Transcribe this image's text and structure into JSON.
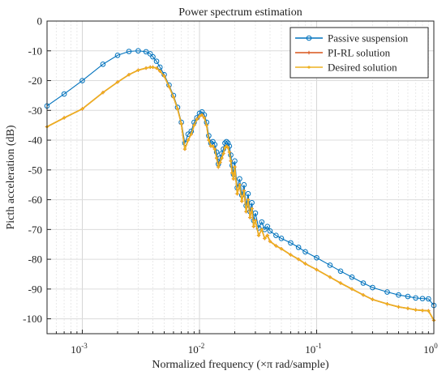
{
  "chart_data": {
    "type": "line",
    "title": "Power spectrum estimation",
    "xlabel": "Normalized frequency  (×π rad/sample)",
    "ylabel": "Picth acceleration (dB)",
    "x_scale": "log",
    "xlim": [
      0.0005,
      1
    ],
    "ylim": [
      -105,
      0
    ],
    "grid": true,
    "legend_position": "top-right",
    "x_ticks": [
      {
        "value": 0.001,
        "base": "10",
        "exp": "-3"
      },
      {
        "value": 0.01,
        "base": "10",
        "exp": "-2"
      },
      {
        "value": 0.1,
        "base": "10",
        "exp": "-1"
      },
      {
        "value": 1,
        "base": "10",
        "exp": "0"
      }
    ],
    "y_ticks": [
      {
        "value": 0,
        "label": "0"
      },
      {
        "value": -10,
        "label": "-10"
      },
      {
        "value": -20,
        "label": "-20"
      },
      {
        "value": -30,
        "label": "-30"
      },
      {
        "value": -40,
        "label": "-40"
      },
      {
        "value": -50,
        "label": "-50"
      },
      {
        "value": -60,
        "label": "-60"
      },
      {
        "value": -70,
        "label": "-70"
      },
      {
        "value": -80,
        "label": "-80"
      },
      {
        "value": -90,
        "label": "-90"
      },
      {
        "value": -100,
        "label": "-100"
      }
    ],
    "series": [
      {
        "name": "Passive suspension",
        "color": "#0072BD",
        "marker": "circle",
        "x": [
          0.0005,
          0.0007,
          0.001,
          0.0015,
          0.002,
          0.0025,
          0.003,
          0.0035,
          0.0038,
          0.004,
          0.0043,
          0.0046,
          0.005,
          0.0055,
          0.006,
          0.0065,
          0.007,
          0.0075,
          0.008,
          0.0085,
          0.009,
          0.0095,
          0.01,
          0.0105,
          0.011,
          0.0115,
          0.012,
          0.0125,
          0.013,
          0.0135,
          0.014,
          0.0145,
          0.015,
          0.0155,
          0.016,
          0.0165,
          0.017,
          0.0175,
          0.018,
          0.0185,
          0.019,
          0.0195,
          0.02,
          0.021,
          0.022,
          0.023,
          0.024,
          0.025,
          0.026,
          0.027,
          0.028,
          0.029,
          0.03,
          0.032,
          0.034,
          0.036,
          0.038,
          0.04,
          0.045,
          0.05,
          0.06,
          0.07,
          0.08,
          0.1,
          0.13,
          0.16,
          0.2,
          0.25,
          0.3,
          0.4,
          0.5,
          0.6,
          0.7,
          0.8,
          0.9,
          1.0
        ],
        "y": [
          -28.5,
          -24.5,
          -20,
          -14.5,
          -11.5,
          -10.2,
          -10,
          -10.3,
          -11,
          -12,
          -13.5,
          -15.5,
          -18,
          -21.5,
          -25,
          -29,
          -34,
          -41,
          -38,
          -37,
          -34,
          -32.5,
          -31,
          -30.5,
          -31.5,
          -34,
          -38.5,
          -41,
          -40.5,
          -41.5,
          -44,
          -48,
          -46,
          -44.5,
          -43,
          -41,
          -40.5,
          -41,
          -42,
          -45,
          -48.5,
          -51.5,
          -47,
          -56,
          -53,
          -58.5,
          -55,
          -62,
          -58,
          -64,
          -61,
          -67,
          -64.5,
          -69.5,
          -67.5,
          -70,
          -69,
          -70.5,
          -72,
          -73,
          -74.5,
          -76,
          -77.5,
          -79.5,
          -82,
          -84,
          -86,
          -88,
          -89.5,
          -91,
          -92,
          -92.5,
          -93,
          -93.2,
          -93.3,
          -95.5
        ]
      },
      {
        "name": "PI-RL solution",
        "color": "#D95319",
        "marker": "plus",
        "x": [
          0.0005,
          0.0007,
          0.001,
          0.0015,
          0.002,
          0.0025,
          0.003,
          0.0035,
          0.0038,
          0.004,
          0.0043,
          0.0046,
          0.005,
          0.0055,
          0.006,
          0.0065,
          0.007,
          0.0075,
          0.008,
          0.0085,
          0.009,
          0.0095,
          0.01,
          0.0105,
          0.011,
          0.0115,
          0.012,
          0.0125,
          0.013,
          0.0135,
          0.014,
          0.0145,
          0.015,
          0.0155,
          0.016,
          0.0165,
          0.017,
          0.0175,
          0.018,
          0.0185,
          0.019,
          0.0195,
          0.02,
          0.021,
          0.022,
          0.023,
          0.024,
          0.025,
          0.026,
          0.027,
          0.028,
          0.029,
          0.03,
          0.032,
          0.034,
          0.036,
          0.038,
          0.04,
          0.045,
          0.05,
          0.06,
          0.07,
          0.08,
          0.1,
          0.13,
          0.16,
          0.2,
          0.25,
          0.3,
          0.4,
          0.5,
          0.6,
          0.7,
          0.8,
          0.9,
          1.0
        ],
        "y": [
          -35.5,
          -32.5,
          -29.5,
          -24,
          -20.5,
          -18,
          -16.5,
          -15.8,
          -15.5,
          -15.5,
          -15.8,
          -16.8,
          -18.5,
          -22,
          -25.5,
          -29.5,
          -34.5,
          -43,
          -40,
          -38,
          -35,
          -33,
          -32,
          -31.5,
          -32.5,
          -35,
          -40,
          -42,
          -42,
          -43,
          -46,
          -49,
          -47.5,
          -46,
          -44.5,
          -42.5,
          -42,
          -42.5,
          -44,
          -47,
          -51,
          -53,
          -49,
          -58,
          -55,
          -60.5,
          -57,
          -64,
          -60,
          -66,
          -63,
          -69,
          -67,
          -72,
          -70,
          -73,
          -72,
          -74,
          -75.5,
          -76.5,
          -78.5,
          -80,
          -81.5,
          -83.5,
          -86,
          -88,
          -90,
          -92,
          -93.5,
          -95,
          -96,
          -96.5,
          -97,
          -97.2,
          -97.3,
          -100.5
        ]
      },
      {
        "name": "Desired solution",
        "color": "#EDB120",
        "marker": "dot",
        "x": [
          0.0005,
          0.0007,
          0.001,
          0.0015,
          0.002,
          0.0025,
          0.003,
          0.0035,
          0.0038,
          0.004,
          0.0043,
          0.0046,
          0.005,
          0.0055,
          0.006,
          0.0065,
          0.007,
          0.0075,
          0.008,
          0.0085,
          0.009,
          0.0095,
          0.01,
          0.0105,
          0.011,
          0.0115,
          0.012,
          0.0125,
          0.013,
          0.0135,
          0.014,
          0.0145,
          0.015,
          0.0155,
          0.016,
          0.0165,
          0.017,
          0.0175,
          0.018,
          0.0185,
          0.019,
          0.0195,
          0.02,
          0.021,
          0.022,
          0.023,
          0.024,
          0.025,
          0.026,
          0.027,
          0.028,
          0.029,
          0.03,
          0.032,
          0.034,
          0.036,
          0.038,
          0.04,
          0.045,
          0.05,
          0.06,
          0.07,
          0.08,
          0.1,
          0.13,
          0.16,
          0.2,
          0.25,
          0.3,
          0.4,
          0.5,
          0.6,
          0.7,
          0.8,
          0.9,
          1.0
        ],
        "y": [
          -35.5,
          -32.5,
          -29.5,
          -24,
          -20.5,
          -18,
          -16.5,
          -15.8,
          -15.5,
          -15.5,
          -15.8,
          -16.8,
          -18.5,
          -22,
          -25.5,
          -29.5,
          -34.5,
          -43,
          -40,
          -38,
          -35,
          -33,
          -32,
          -31.5,
          -32.5,
          -35,
          -40,
          -42,
          -42,
          -43,
          -46,
          -49,
          -47.5,
          -46,
          -44.5,
          -42.5,
          -42,
          -42.5,
          -44,
          -47,
          -51,
          -53,
          -49,
          -58,
          -55,
          -60.5,
          -57,
          -64,
          -60,
          -66,
          -63,
          -69,
          -67,
          -72,
          -70,
          -73,
          -72,
          -74,
          -75.5,
          -76.5,
          -78.5,
          -80,
          -81.5,
          -83.5,
          -86,
          -88,
          -90,
          -92,
          -93.5,
          -95,
          -96,
          -96.5,
          -97,
          -97.2,
          -97.3,
          -100.5
        ]
      }
    ]
  }
}
